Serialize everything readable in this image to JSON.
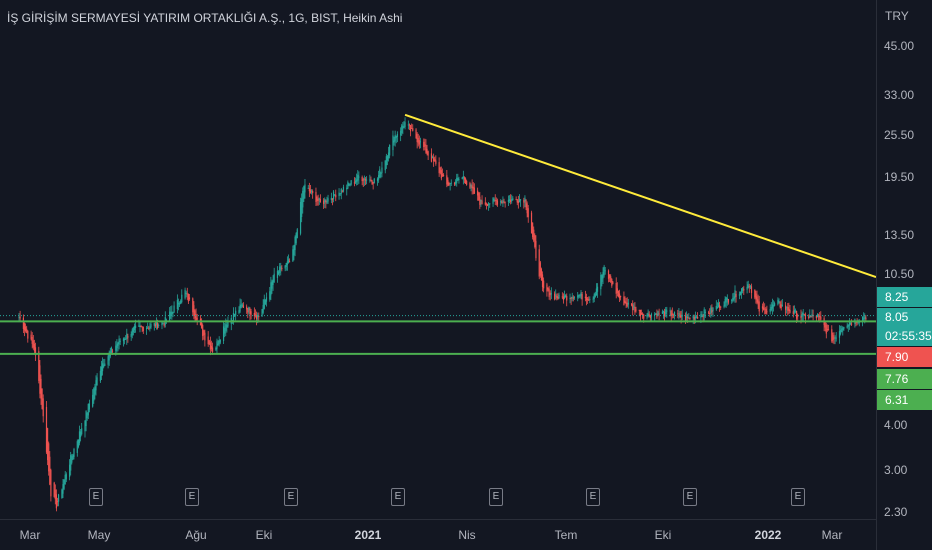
{
  "header": {
    "title": "İŞ GİRİŞİM SERMAYESİ YATIRIM ORTAKLIĞI A.Ş., 1G, BIST, Heikin Ashi"
  },
  "currency": "TRY",
  "colors": {
    "background": "#131722",
    "up": "#26a69a",
    "down": "#ef5350",
    "trendline": "#ffeb3b",
    "support": "#4caf50",
    "price_line": "#26a69a"
  },
  "earnings_badges": [
    "E",
    "E",
    "E",
    "E",
    "E",
    "E",
    "E",
    "E"
  ],
  "chart_data": {
    "type": "candlestick",
    "title": "İŞ GİRİŞİM SERMAYESİ YATIRIM ORTAKLIĞI A.Ş., 1G, BIST, Heikin Ashi",
    "scale": "log",
    "ylim": [
      2.2,
      58
    ],
    "y_ticks": [
      "45.00",
      "33.00",
      "25.50",
      "19.50",
      "13.50",
      "10.50",
      "4.00",
      "3.00",
      "2.30"
    ],
    "x_ticks": [
      "Mar",
      "May",
      "Ağu",
      "Eki",
      "2021",
      "Nis",
      "Tem",
      "Eki",
      "2022",
      "Mar"
    ],
    "price_labels": [
      {
        "text": "8.25",
        "color": "#26a69a"
      },
      {
        "text": "8.05",
        "color": "#26a69a"
      },
      {
        "text": "02:55:35",
        "color": "#26a69a"
      },
      {
        "text": "7.90",
        "color": "#ef5350"
      },
      {
        "text": "7.76",
        "color": "#4caf50"
      },
      {
        "text": "6.31",
        "color": "#4caf50"
      }
    ],
    "support_lines": [
      7.76,
      6.31
    ],
    "trendline": {
      "from": {
        "date": "2021-02-05",
        "y": 29.0
      },
      "to": {
        "date": "2022-04-01",
        "y": 10.3
      }
    },
    "series_anchors": [
      [
        "2020-02-20",
        8.0
      ],
      [
        "2020-03-05",
        6.5
      ],
      [
        "2020-03-12",
        4.5
      ],
      [
        "2020-03-20",
        2.6
      ],
      [
        "2020-03-25",
        2.4
      ],
      [
        "2020-04-05",
        3.1
      ],
      [
        "2020-04-20",
        4.2
      ],
      [
        "2020-05-05",
        5.9
      ],
      [
        "2020-05-20",
        6.8
      ],
      [
        "2020-06-05",
        7.4
      ],
      [
        "2020-07-01",
        7.7
      ],
      [
        "2020-07-20",
        9.4
      ],
      [
        "2020-08-05",
        7.2
      ],
      [
        "2020-08-15",
        6.4
      ],
      [
        "2020-08-25",
        7.6
      ],
      [
        "2020-09-10",
        8.6
      ],
      [
        "2020-09-25",
        8.0
      ],
      [
        "2020-10-10",
        10.5
      ],
      [
        "2020-10-25",
        11.5
      ],
      [
        "2020-11-05",
        18.5
      ],
      [
        "2020-11-20",
        16.5
      ],
      [
        "2020-12-10",
        18.0
      ],
      [
        "2020-12-25",
        19.5
      ],
      [
        "2021-01-10",
        19.0
      ],
      [
        "2021-01-25",
        25.0
      ],
      [
        "2021-02-05",
        27.5
      ],
      [
        "2021-02-20",
        24.0
      ],
      [
        "2021-03-05",
        21.0
      ],
      [
        "2021-03-15",
        18.5
      ],
      [
        "2021-03-30",
        19.5
      ],
      [
        "2021-04-15",
        16.5
      ],
      [
        "2021-05-05",
        16.8
      ],
      [
        "2021-05-25",
        17.0
      ],
      [
        "2021-06-10",
        9.5
      ],
      [
        "2021-06-25",
        9.0
      ],
      [
        "2021-07-10",
        9.2
      ],
      [
        "2021-07-25",
        9.0
      ],
      [
        "2021-08-05",
        10.8
      ],
      [
        "2021-08-20",
        8.9
      ],
      [
        "2021-09-10",
        8.1
      ],
      [
        "2021-10-01",
        8.2
      ],
      [
        "2021-10-20",
        7.9
      ],
      [
        "2021-11-10",
        8.3
      ],
      [
        "2021-12-01",
        9.2
      ],
      [
        "2021-12-15",
        9.9
      ],
      [
        "2021-12-25",
        8.2
      ],
      [
        "2022-01-10",
        8.7
      ],
      [
        "2022-01-30",
        8.0
      ],
      [
        "2022-02-15",
        8.0
      ],
      [
        "2022-03-01",
        6.9
      ],
      [
        "2022-03-10",
        7.6
      ],
      [
        "2022-03-25",
        7.9
      ],
      [
        "2022-04-01",
        8.05
      ]
    ]
  }
}
